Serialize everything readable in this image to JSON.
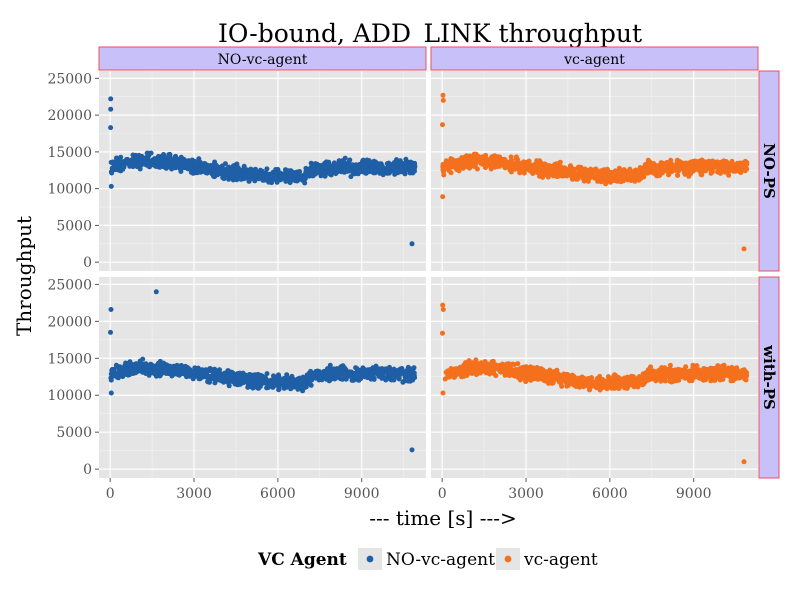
{
  "chart_data": {
    "type": "scatter",
    "title": "IO-bound, ADD_LINK throughput",
    "xlabel": "--- time [s] --->",
    "ylabel": "Throughput",
    "xlim": [
      -400,
      11300
    ],
    "ylim": [
      -1200,
      26000
    ],
    "xticks": [
      0,
      3000,
      6000,
      9000
    ],
    "yticks": [
      0,
      5000,
      10000,
      15000,
      20000,
      25000
    ],
    "column_facets": [
      "NO-vc-agent",
      "vc-agent"
    ],
    "row_facets": [
      "NO-PS",
      "with-PS"
    ],
    "legend": {
      "title": "VC Agent",
      "entries": [
        "NO-vc-agent",
        "vc-agent"
      ],
      "position": "bottom"
    },
    "colors": {
      "NO-vc-agent": "#1f5fa6",
      "vc-agent": "#f4701d",
      "panel_bg": "#e5e5e5",
      "grid": "#ffffff",
      "strip_fill": "#c8c0f8",
      "strip_border": "#e8505b"
    },
    "trend": {
      "description": "Per-run throughput samples; dense band drifting from ~13500 down to ~11500 and back to ~12800",
      "x": [
        0,
        1000,
        2000,
        3000,
        4000,
        5000,
        6000,
        7000,
        7300,
        8000,
        9000,
        10000,
        10900
      ],
      "y": [
        12900,
        13700,
        13600,
        13100,
        12500,
        11900,
        11700,
        11800,
        12700,
        12900,
        12900,
        12900,
        12900
      ],
      "spread": 650
    },
    "panels": [
      {
        "column": "NO-vc-agent",
        "row": "NO-PS",
        "series": "NO-vc-agent",
        "outliers": [
          [
            20,
            22200
          ],
          [
            20,
            20800
          ],
          [
            15,
            18300
          ],
          [
            40,
            10300
          ],
          [
            10800,
            2500
          ]
        ]
      },
      {
        "column": "vc-agent",
        "row": "NO-PS",
        "series": "vc-agent",
        "outliers": [
          [
            30,
            22700
          ],
          [
            40,
            22000
          ],
          [
            10,
            18700
          ],
          [
            20,
            8900
          ],
          [
            10800,
            1800
          ]
        ]
      },
      {
        "column": "NO-vc-agent",
        "row": "with-PS",
        "series": "NO-vc-agent",
        "outliers": [
          [
            30,
            21600
          ],
          [
            10,
            18500
          ],
          [
            1650,
            24000
          ],
          [
            40,
            10300
          ],
          [
            10800,
            2600
          ]
        ]
      },
      {
        "column": "vc-agent",
        "row": "with-PS",
        "series": "vc-agent",
        "outliers": [
          [
            20,
            22200
          ],
          [
            40,
            21600
          ],
          [
            10,
            18400
          ],
          [
            30,
            10300
          ],
          [
            10800,
            1000
          ]
        ]
      }
    ]
  }
}
